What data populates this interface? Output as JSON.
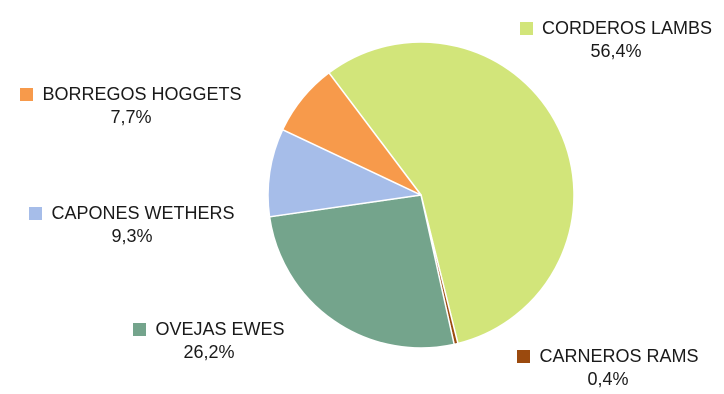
{
  "chart_data": {
    "type": "pie",
    "start_angle_deg": -37,
    "direction": "clockwise",
    "slices": [
      {
        "label": "CORDEROS LAMBS",
        "value": 56.4,
        "value_label": "56,4%",
        "color": "#d2e57a"
      },
      {
        "label": "CARNEROS RAMS",
        "value": 0.4,
        "value_label": "0,4%",
        "color": "#9b4a0e"
      },
      {
        "label": "OVEJAS EWES",
        "value": 26.2,
        "value_label": "26,2%",
        "color": "#74a48c"
      },
      {
        "label": "CAPONES WETHERS",
        "value": 9.3,
        "value_label": "9,3%",
        "color": "#a6bde9"
      },
      {
        "label": "BORREGOS HOGGETS",
        "value": 7.7,
        "value_label": "7,7%",
        "color": "#f79a4b"
      }
    ]
  }
}
